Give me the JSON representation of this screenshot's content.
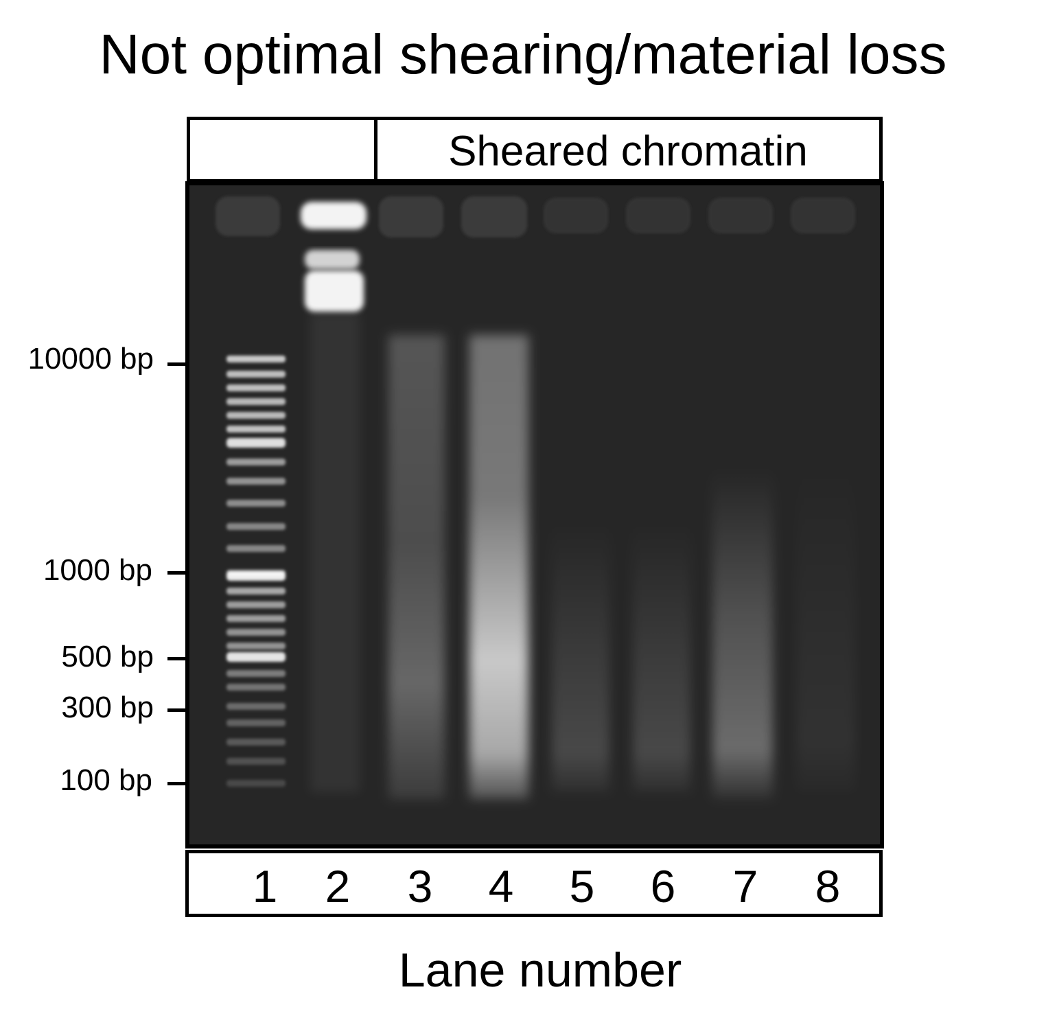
{
  "title": "Not optimal shearing/material loss",
  "header": {
    "label": "Sheared chromatin"
  },
  "xaxis": {
    "label": "Lane number"
  },
  "lanes": [
    "1",
    "2",
    "3",
    "4",
    "5",
    "6",
    "7",
    "8"
  ],
  "markers": [
    {
      "label": "10000 bp"
    },
    {
      "label": "1000 bp"
    },
    {
      "label": "500 bp"
    },
    {
      "label": "300 bp"
    },
    {
      "label": "100 bp"
    }
  ],
  "colors": {
    "gel_background": "#262626",
    "band": "#ffffff",
    "frame": "#000000"
  }
}
